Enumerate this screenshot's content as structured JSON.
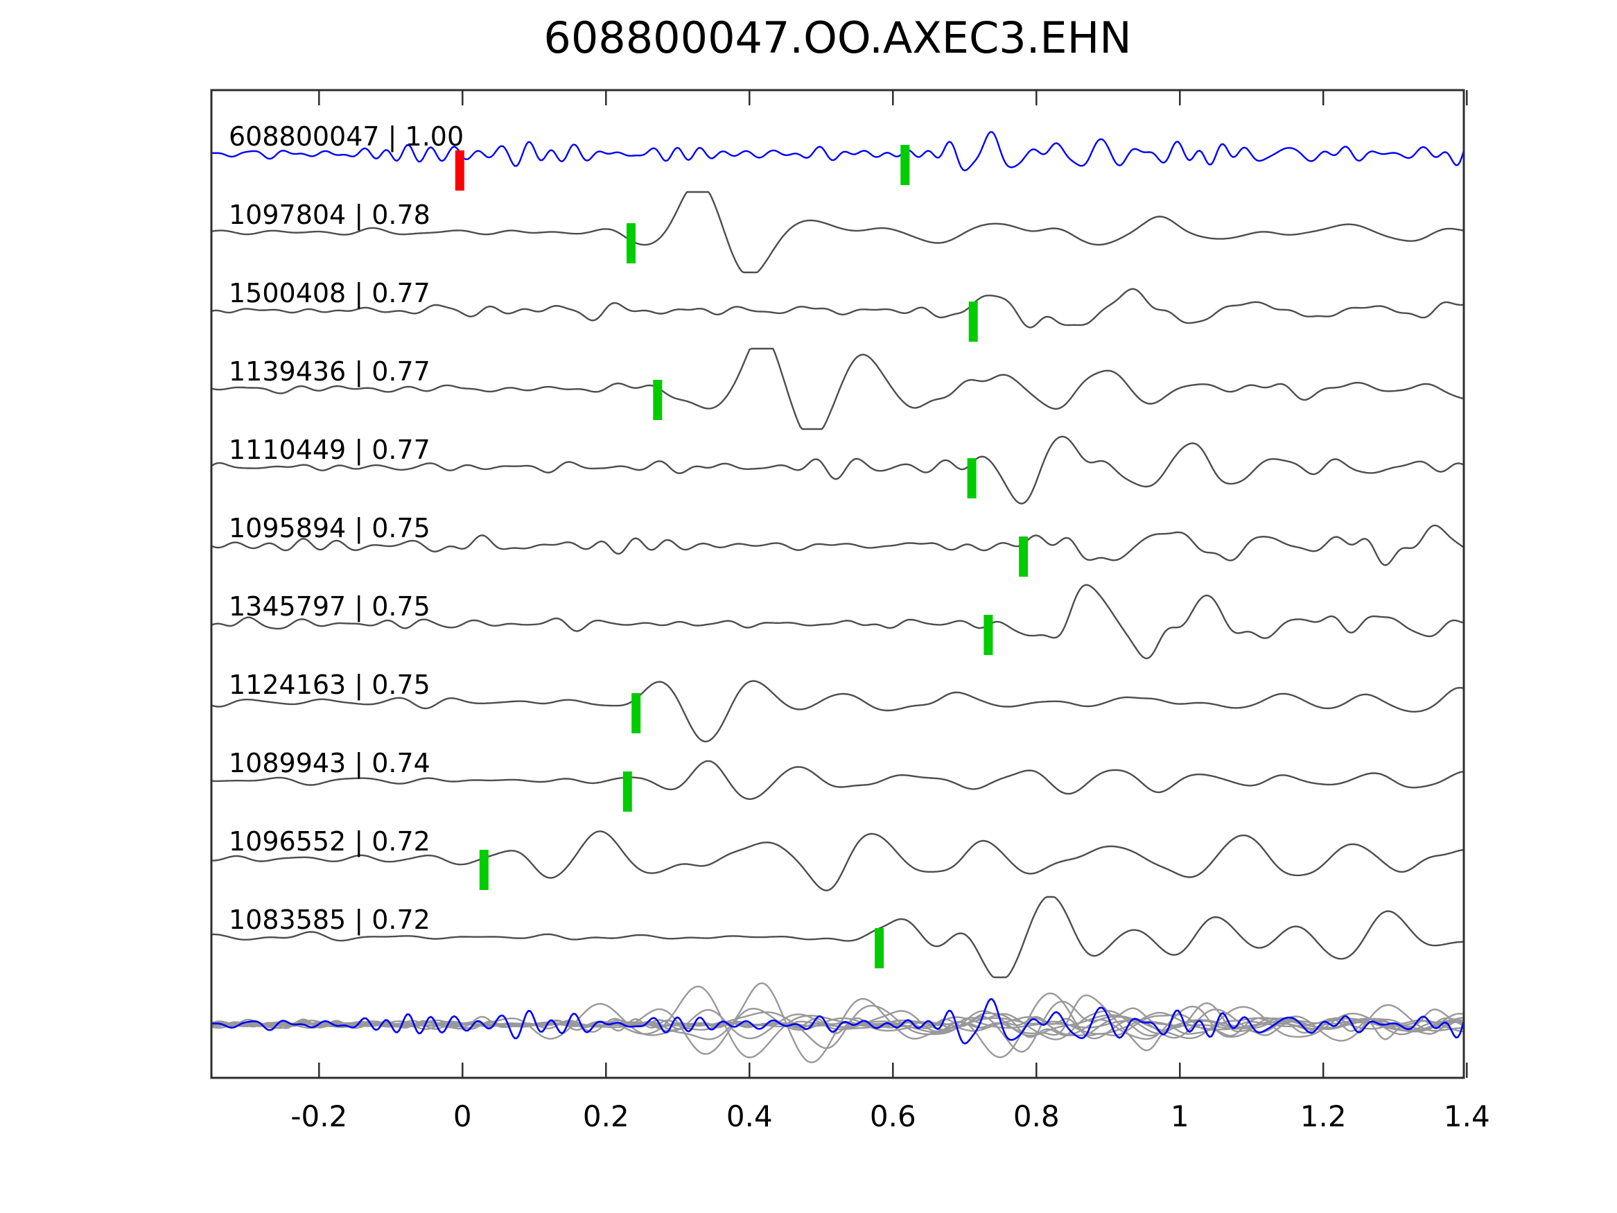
{
  "title": "608800047.OO.AXEC3.EHN",
  "chart_data": {
    "type": "line",
    "title": "608800047.OO.AXEC3.EHN",
    "subtitle": "",
    "xlabel": "",
    "ylabel": "",
    "xlim": [
      -0.35,
      1.4
    ],
    "grid": false,
    "legend_position": "none",
    "x_ticks": [
      {
        "value": -0.2,
        "label": "-0.2"
      },
      {
        "value": 0.0,
        "label": "0"
      },
      {
        "value": 0.2,
        "label": "0.2"
      },
      {
        "value": 0.4,
        "label": "0.4"
      },
      {
        "value": 0.6,
        "label": "0.6"
      },
      {
        "value": 0.8,
        "label": "0.8"
      },
      {
        "value": 1.0,
        "label": "1"
      },
      {
        "value": 1.2,
        "label": "1.2"
      },
      {
        "value": 1.4,
        "label": "1.4"
      }
    ],
    "colors": {
      "template_trace": "#0000ff",
      "match_trace": "#4d4d4d",
      "overlay_trace": "#999999",
      "pick_marker": "#00cc00",
      "origin_marker": "#ff0000",
      "axis": "#2e2e2e",
      "text": "#000000"
    },
    "traces": [
      {
        "id": "608800047",
        "cc": "1.00",
        "label": "608800047 | 1.00",
        "role": "template",
        "pick_time": 0.617,
        "origin_time": 0.0,
        "noise_amp": 16,
        "noise_freq": 30,
        "event_amp": 17,
        "event_freq": 16,
        "coda": 0.9,
        "seed": 11
      },
      {
        "id": "1097804",
        "cc": "0.78",
        "label": "1097804 | 0.78",
        "role": "match",
        "pick_time": 0.235,
        "noise_amp": 5,
        "noise_freq": 13,
        "event_amp": 34,
        "event_freq": 6.5,
        "coda": 0.8,
        "seed": 22
      },
      {
        "id": "1500408",
        "cc": "0.77",
        "label": "1500408 | 0.77",
        "role": "match",
        "pick_time": 0.712,
        "noise_amp": 11,
        "noise_freq": 15,
        "event_amp": 30,
        "event_freq": 7.5,
        "coda": 1.2,
        "seed": 33
      },
      {
        "id": "1139436",
        "cc": "0.77",
        "label": "1139436 | 0.77",
        "role": "match",
        "pick_time": 0.272,
        "noise_amp": 7,
        "noise_freq": 13,
        "event_amp": 36,
        "event_freq": 6.5,
        "coda": 1.2,
        "seed": 44
      },
      {
        "id": "1110449",
        "cc": "0.77",
        "label": "1110449 | 0.77",
        "role": "match",
        "pick_time": 0.71,
        "noise_amp": 13,
        "noise_freq": 17,
        "event_amp": 28,
        "event_freq": 8,
        "coda": 1.3,
        "seed": 55
      },
      {
        "id": "1095894",
        "cc": "0.75",
        "label": "1095894 | 0.75",
        "role": "match",
        "pick_time": 0.782,
        "noise_amp": 12,
        "noise_freq": 15,
        "event_amp": 30,
        "event_freq": 7.5,
        "coda": 1.2,
        "seed": 66
      },
      {
        "id": "1345797",
        "cc": "0.75",
        "label": "1345797 | 0.75",
        "role": "match",
        "pick_time": 0.733,
        "noise_amp": 14,
        "noise_freq": 17,
        "event_amp": 28,
        "event_freq": 8,
        "coda": 1.3,
        "seed": 77
      },
      {
        "id": "1124163",
        "cc": "0.75",
        "label": "1124163 | 0.75",
        "role": "match",
        "pick_time": 0.242,
        "noise_amp": 6,
        "noise_freq": 12,
        "event_amp": 28,
        "event_freq": 6.5,
        "coda": 1.1,
        "seed": 88
      },
      {
        "id": "1089943",
        "cc": "0.74",
        "label": "1089943 | 0.74",
        "role": "match",
        "pick_time": 0.23,
        "noise_amp": 6,
        "noise_freq": 12,
        "event_amp": 28,
        "event_freq": 6.5,
        "coda": 1.1,
        "seed": 99
      },
      {
        "id": "1096552",
        "cc": "0.72",
        "label": "1096552 | 0.72",
        "role": "match",
        "pick_time": 0.03,
        "noise_amp": 7,
        "noise_freq": 11,
        "event_amp": 30,
        "event_freq": 6,
        "coda": 1.8,
        "seed": 111
      },
      {
        "id": "1083585",
        "cc": "0.72",
        "label": "1083585 | 0.72",
        "role": "match",
        "pick_time": 0.581,
        "noise_amp": 6,
        "noise_freq": 12,
        "event_amp": 32,
        "event_freq": 7,
        "coda": 2.4,
        "seed": 122
      }
    ],
    "overlay": {
      "description": "all matched traces overlaid with template",
      "includes_template": true,
      "match_scale": 0.75,
      "template_scale": 1.15
    }
  }
}
